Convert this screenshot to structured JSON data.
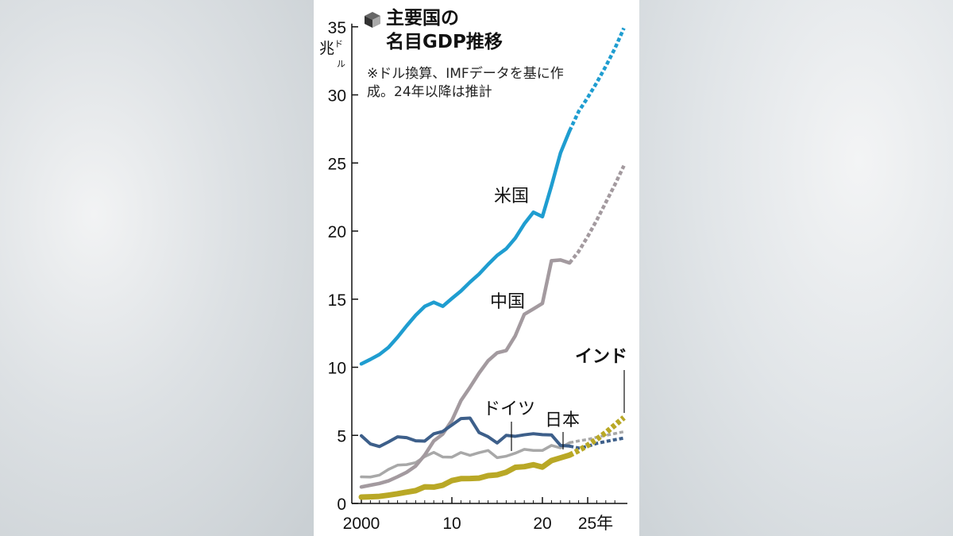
{
  "chart_data": {
    "type": "line",
    "title": "主要国の名目GDP推移",
    "title_lines": [
      "主要国の",
      "名目GDP推移"
    ],
    "note": "※ドル換算、IMFデータを基に作成。24年以降は推計",
    "unit": "兆ドル",
    "unit_main": "兆",
    "unit_sub1": "ド",
    "unit_sub2": "ル",
    "yticks": [
      "0",
      "5",
      "10",
      "15",
      "20",
      "25",
      "30",
      "35"
    ],
    "xticks": [
      "2000",
      "10",
      "20",
      "25年"
    ],
    "ylim": [
      0,
      35
    ],
    "xlim": [
      2000,
      2029
    ],
    "estimate_from": 2023,
    "grid": false,
    "series": [
      {
        "name": "米国",
        "color": "#1f9dd0",
        "x": [
          2000,
          2001,
          2002,
          2003,
          2004,
          2005,
          2006,
          2007,
          2008,
          2009,
          2010,
          2011,
          2012,
          2013,
          2014,
          2015,
          2016,
          2017,
          2018,
          2019,
          2020,
          2021,
          2022,
          2023,
          2024,
          2025,
          2026,
          2027,
          2028,
          2029
        ],
        "values": [
          10.25,
          10.58,
          10.94,
          11.46,
          12.21,
          13.04,
          13.82,
          14.47,
          14.77,
          14.48,
          15.05,
          15.6,
          16.25,
          16.84,
          17.55,
          18.21,
          18.7,
          19.48,
          20.53,
          21.38,
          21.06,
          23.32,
          25.74,
          27.36,
          28.78,
          29.8,
          30.9,
          32.1,
          33.4,
          34.9
        ]
      },
      {
        "name": "中国",
        "color": "#a39a9f",
        "x": [
          2000,
          2001,
          2002,
          2003,
          2004,
          2005,
          2006,
          2007,
          2008,
          2009,
          2010,
          2011,
          2012,
          2013,
          2014,
          2015,
          2016,
          2017,
          2018,
          2019,
          2020,
          2021,
          2022,
          2023,
          2024,
          2025,
          2026,
          2027,
          2028,
          2029
        ],
        "values": [
          1.21,
          1.34,
          1.47,
          1.66,
          1.96,
          2.29,
          2.75,
          3.55,
          4.59,
          5.1,
          6.09,
          7.55,
          8.53,
          9.57,
          10.48,
          11.06,
          11.23,
          12.31,
          13.89,
          14.28,
          14.69,
          17.82,
          17.88,
          17.66,
          18.5,
          19.6,
          20.8,
          22.1,
          23.4,
          24.8
        ]
      },
      {
        "name": "ドイツ",
        "color": "#a8a8a8",
        "x": [
          2000,
          2001,
          2002,
          2003,
          2004,
          2005,
          2006,
          2007,
          2008,
          2009,
          2010,
          2011,
          2012,
          2013,
          2014,
          2015,
          2016,
          2017,
          2018,
          2019,
          2020,
          2021,
          2022,
          2023,
          2024,
          2025,
          2026,
          2027,
          2028,
          2029
        ],
        "values": [
          1.95,
          1.94,
          2.08,
          2.5,
          2.81,
          2.85,
          3.0,
          3.44,
          3.75,
          3.41,
          3.4,
          3.74,
          3.53,
          3.73,
          3.89,
          3.36,
          3.47,
          3.69,
          3.97,
          3.89,
          3.89,
          4.26,
          4.08,
          4.46,
          4.59,
          4.7,
          4.86,
          5.0,
          5.13,
          5.27
        ]
      },
      {
        "name": "日本",
        "color": "#3d5f8a",
        "x": [
          2000,
          2001,
          2002,
          2003,
          2004,
          2005,
          2006,
          2007,
          2008,
          2009,
          2010,
          2011,
          2012,
          2013,
          2014,
          2015,
          2016,
          2017,
          2018,
          2019,
          2020,
          2021,
          2022,
          2023,
          2024,
          2025,
          2026,
          2027,
          2028,
          2029
        ],
        "values": [
          4.97,
          4.37,
          4.18,
          4.52,
          4.89,
          4.83,
          4.6,
          4.58,
          5.11,
          5.29,
          5.76,
          6.23,
          6.27,
          5.21,
          4.9,
          4.44,
          5.0,
          4.93,
          5.04,
          5.12,
          5.05,
          5.03,
          4.26,
          4.21,
          4.07,
          4.19,
          4.41,
          4.55,
          4.68,
          4.8
        ]
      },
      {
        "name": "インド",
        "color": "#b9a826",
        "x": [
          2000,
          2001,
          2002,
          2003,
          2004,
          2005,
          2006,
          2007,
          2008,
          2009,
          2010,
          2011,
          2012,
          2013,
          2014,
          2015,
          2016,
          2017,
          2018,
          2019,
          2020,
          2021,
          2022,
          2023,
          2024,
          2025,
          2026,
          2027,
          2028,
          2029
        ],
        "values": [
          0.47,
          0.49,
          0.52,
          0.61,
          0.71,
          0.83,
          0.94,
          1.22,
          1.2,
          1.34,
          1.68,
          1.82,
          1.83,
          1.86,
          2.04,
          2.1,
          2.29,
          2.65,
          2.7,
          2.84,
          2.67,
          3.15,
          3.35,
          3.55,
          3.89,
          4.27,
          4.72,
          5.2,
          5.75,
          6.31
        ]
      }
    ]
  }
}
